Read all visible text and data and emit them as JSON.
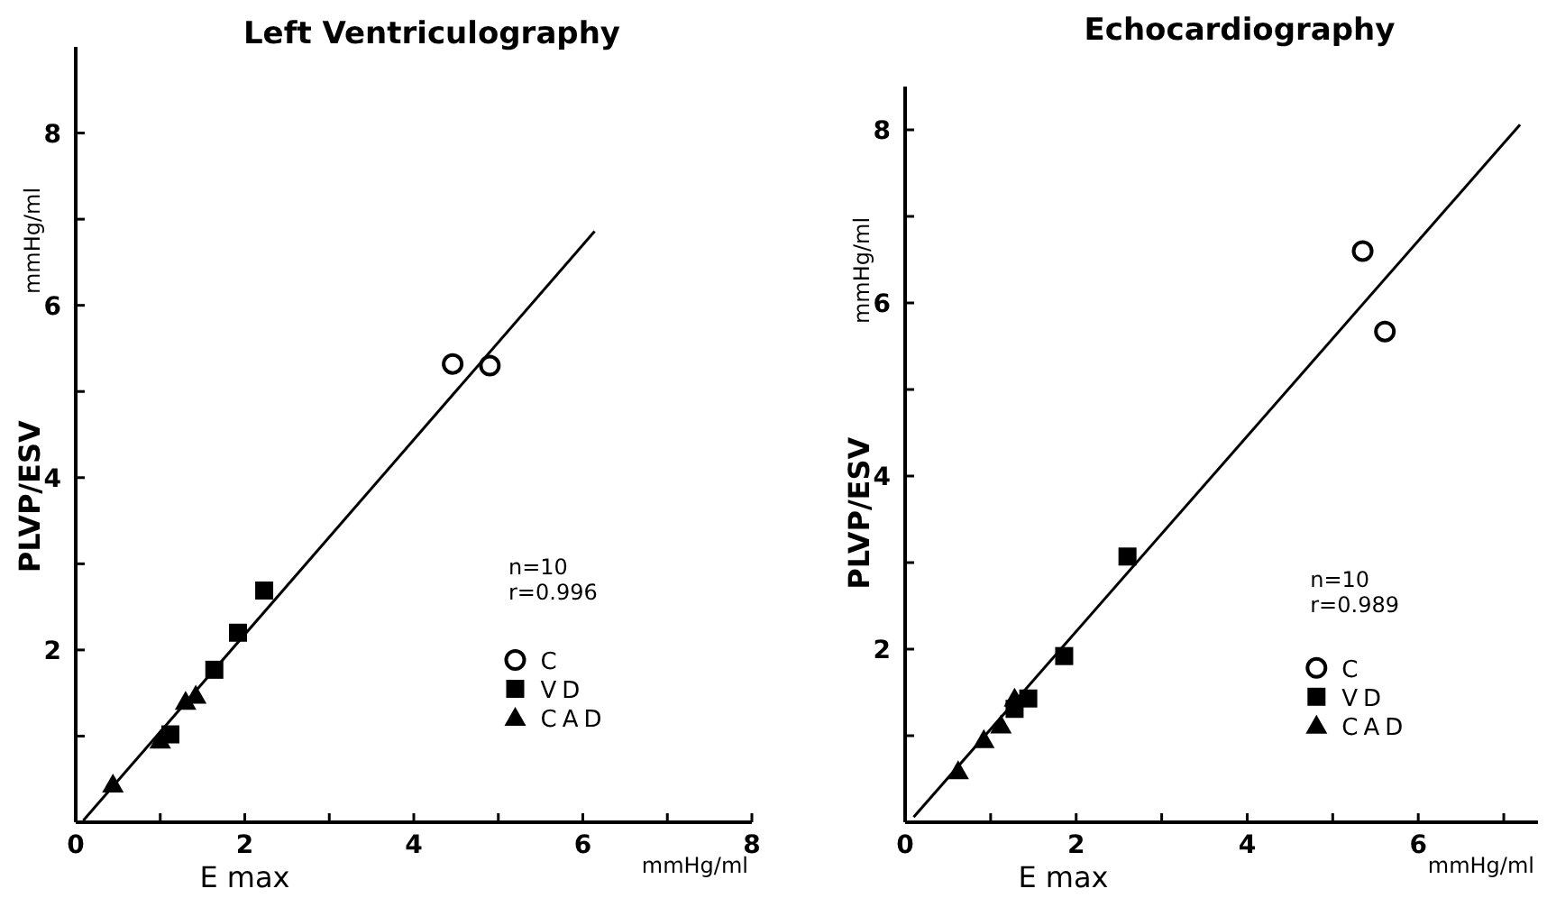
{
  "chart_data": [
    {
      "type": "scatter",
      "title": "Left Ventriculography",
      "xlabel": "E max",
      "ylabel": "PLVP/ESV",
      "annotations": [
        "n=10",
        "r=0.996",
        "mmHg/ml",
        "mmHg/ml"
      ],
      "xlim": [
        0,
        8
      ],
      "ylim": [
        0,
        9
      ],
      "xticks": [
        0,
        {
          "value": 1,
          "label": null
        },
        2,
        {
          "value": 3,
          "label": null
        },
        4,
        {
          "value": 5,
          "label": null
        },
        6,
        {
          "value": 7,
          "label": null
        },
        8
      ],
      "yticks": [
        {
          "value": 1,
          "label": null
        },
        2,
        {
          "value": 3,
          "label": null
        },
        4,
        {
          "value": 5,
          "label": null
        },
        6,
        {
          "value": 7,
          "label": null
        },
        8
      ],
      "legend": "right",
      "series": [
        {
          "name": "C",
          "color": "#000000",
          "marker": "circle",
          "x": [
            4.46,
            4.9
          ],
          "values": [
            5.32,
            5.3
          ]
        },
        {
          "name": "VD",
          "color": "#000000",
          "marker": "square",
          "x": [
            2.23,
            1.92,
            1.64,
            1.12
          ],
          "values": [
            2.69,
            2.2,
            1.77,
            1.02
          ]
        },
        {
          "name": "CAD",
          "color": "#000000",
          "marker": "triangle",
          "x": [
            0.44,
            1.0,
            1.3,
            1.42
          ],
          "values": [
            0.44,
            0.95,
            1.4,
            1.47
          ]
        },
        {
          "type": "line",
          "color": "#000000",
          "x": [
            0.09,
            6.14
          ],
          "values": [
            0.02,
            6.86
          ]
        }
      ]
    },
    {
      "type": "scatter",
      "title": "Echocardiography",
      "xlabel": "E max",
      "ylabel": "PLVP/ESV",
      "annotations": [
        "n=10",
        "r=0.989",
        "mmHg/ml",
        "mmHg/ml"
      ],
      "xlim": [
        0,
        7.4
      ],
      "ylim": [
        0,
        8.5
      ],
      "xticks": [
        0,
        {
          "value": 1,
          "label": null
        },
        2,
        {
          "value": 3,
          "label": null
        },
        4,
        {
          "value": 5,
          "label": null
        },
        6,
        {
          "value": 7,
          "label": null
        }
      ],
      "yticks": [
        {
          "value": 1,
          "label": null
        },
        2,
        {
          "value": 3,
          "label": null
        },
        4,
        {
          "value": 5,
          "label": null
        },
        6,
        {
          "value": 7,
          "label": null
        },
        8
      ],
      "legend": "right",
      "series": [
        {
          "name": "C",
          "color": "#000000",
          "marker": "circle",
          "x": [
            5.35,
            5.61
          ],
          "values": [
            6.6,
            5.67
          ]
        },
        {
          "name": "VD",
          "color": "#000000",
          "marker": "square",
          "x": [
            2.6,
            1.86,
            1.44,
            1.28
          ],
          "values": [
            3.07,
            1.92,
            1.43,
            1.31
          ]
        },
        {
          "name": "CAD",
          "color": "#000000",
          "marker": "triangle",
          "x": [
            0.62,
            0.92,
            1.12,
            1.28
          ],
          "values": [
            0.59,
            0.95,
            1.12,
            1.43
          ]
        },
        {
          "type": "line",
          "color": "#000000",
          "x": [
            0.1,
            7.19
          ],
          "values": [
            0.06,
            8.06
          ]
        }
      ]
    }
  ]
}
